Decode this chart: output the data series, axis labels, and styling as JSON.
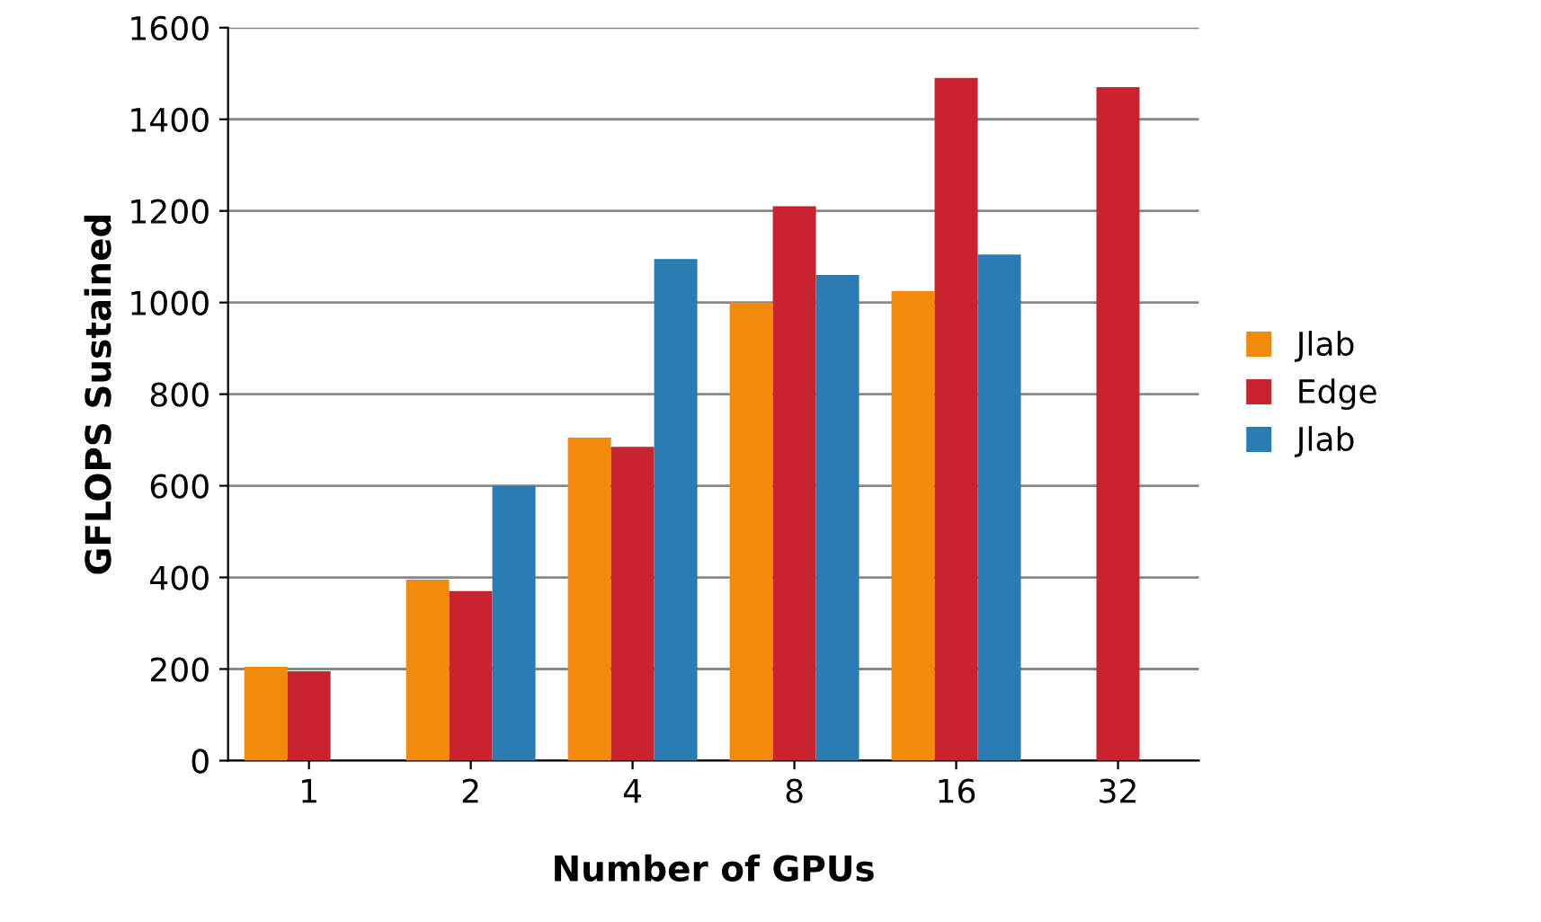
{
  "chart_data": {
    "type": "bar",
    "xlabel": "Number of GPUs",
    "ylabel": "GFLOPS Sustained",
    "categories": [
      "1",
      "2",
      "4",
      "8",
      "16",
      "32"
    ],
    "series": [
      {
        "name": "Jlab",
        "color": "#f28a0c",
        "values": [
          205,
          395,
          705,
          1000,
          1025,
          null
        ]
      },
      {
        "name": "Edge",
        "color": "#c8232f",
        "values": [
          195,
          370,
          685,
          1210,
          1490,
          1470
        ]
      },
      {
        "name": "Jlab",
        "color": "#2a7db3",
        "values": [
          null,
          600,
          1095,
          1060,
          1105,
          null
        ]
      }
    ],
    "ylim": [
      0,
      1600
    ],
    "yticks": [
      0,
      200,
      400,
      600,
      800,
      1000,
      1200,
      1400,
      1600
    ],
    "grid": "y",
    "legend": "right"
  }
}
